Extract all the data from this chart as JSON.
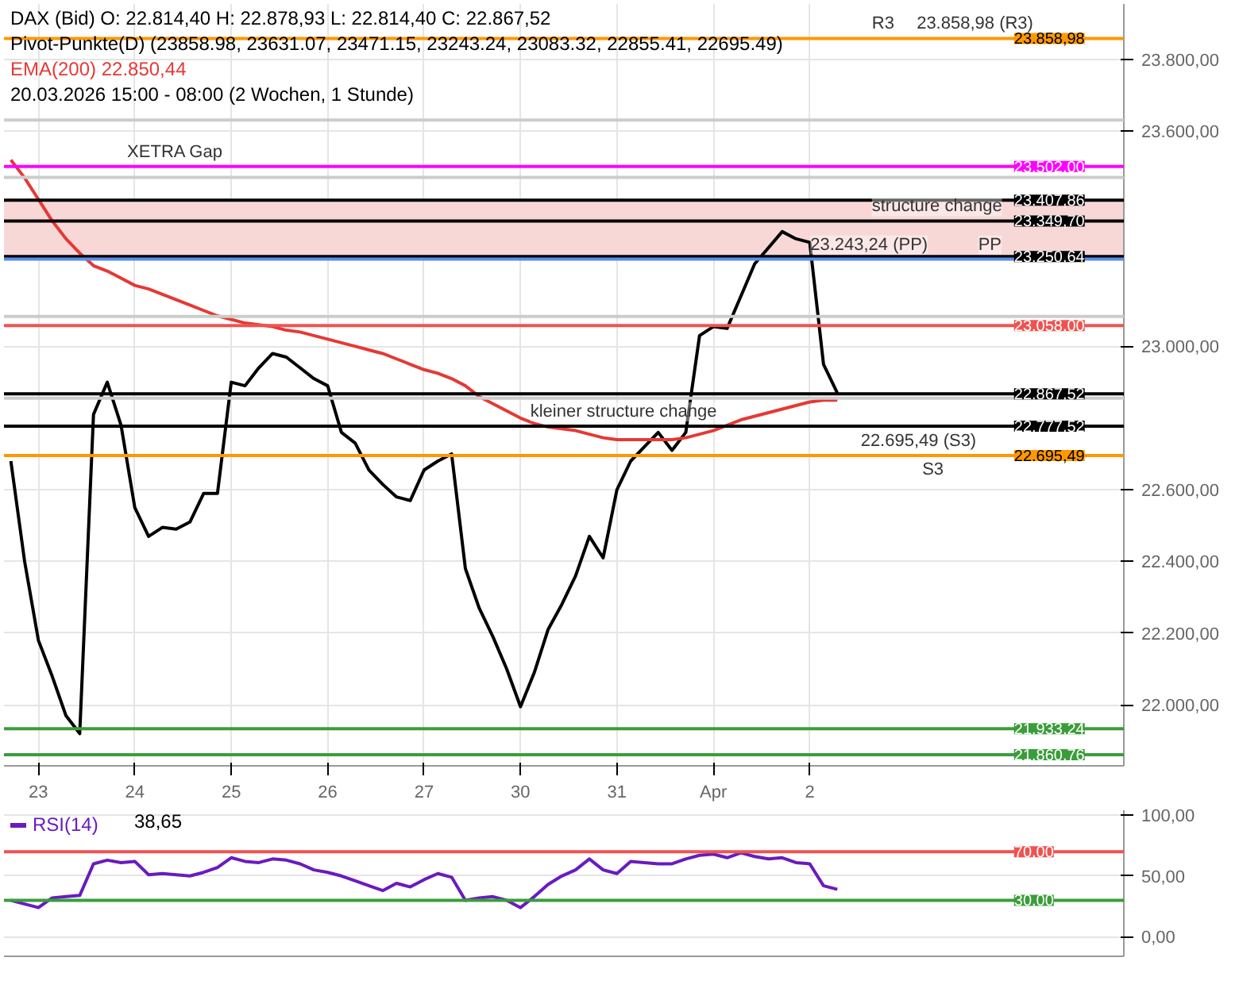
{
  "chart_data": [
    {
      "type": "line",
      "title": "DAX (Bid)  O: 22.814,40  H: 22.878,93  L: 22.814,40  C: 22.867,52",
      "subtitle": "Pivot-Punkte(D) (23858.98, 23631.07, 23471.15, 23243.24, 23083.32, 22855.41, 22695.49)",
      "categories": [
        null,
        null,
        "23",
        null,
        null,
        null,
        null,
        null,
        null,
        "24",
        null,
        null,
        null,
        null,
        null,
        null,
        "25",
        null,
        null,
        null,
        null,
        null,
        null,
        "26",
        null,
        null,
        null,
        null,
        null,
        null,
        "27",
        null,
        null,
        null,
        null,
        null,
        null,
        "30",
        null,
        null,
        null,
        null,
        null,
        null,
        "31",
        null,
        null,
        null,
        null,
        null,
        null,
        "Apr",
        null,
        null,
        null,
        null,
        null,
        null,
        "2",
        null,
        null,
        null,
        null,
        null,
        null,
        null,
        null,
        null,
        null,
        null,
        null,
        null,
        null
      ],
      "series": [
        {
          "color": "#000000",
          "values": [
            22680,
            22400,
            22180,
            22080,
            21970,
            21920,
            22810,
            22900,
            22780,
            22550,
            22470,
            22495,
            22490,
            22510,
            22590,
            22590,
            22900,
            22890,
            22940,
            22980,
            22970,
            22940,
            22910,
            22890,
            22760,
            22730,
            22655,
            22615,
            22580,
            22570,
            22655,
            22680,
            22700,
            22380,
            22270,
            22190,
            22100,
            21995,
            22090,
            22210,
            22280,
            22360,
            22470,
            22410,
            22600,
            22680,
            22720,
            22760,
            22710,
            22760,
            23030,
            23055,
            23050,
            23140,
            23230,
            23275,
            23320,
            23300,
            23290,
            22950,
            22870,
            null,
            null,
            null,
            null,
            null,
            null,
            null,
            null,
            null,
            null,
            null,
            null
          ]
        },
        {
          "name": "EMA(200) 22.850,44",
          "color": "#e53935",
          "values": [
            23520,
            23470,
            23410,
            23350,
            23300,
            23260,
            23225,
            23210,
            23190,
            23170,
            23160,
            23145,
            23130,
            23115,
            23100,
            23085,
            23075,
            23065,
            23060,
            23055,
            23045,
            23040,
            23030,
            23020,
            23010,
            23000,
            22990,
            22980,
            22965,
            22950,
            22935,
            22925,
            22910,
            22890,
            22860,
            22840,
            22820,
            22800,
            22785,
            22775,
            22770,
            22765,
            22755,
            22745,
            22740,
            22740,
            22740,
            22740,
            22740,
            22745,
            22755,
            22765,
            22780,
            22795,
            22805,
            22815,
            22825,
            22835,
            22845,
            22850,
            22850,
            null,
            null,
            null,
            null,
            null,
            null,
            null,
            null,
            null,
            null,
            null,
            null
          ]
        }
      ],
      "annotations": [
        "20.03.2026 15:00 - 08:00 (2 Wochen, 1 Stunde)",
        {
          "text": "XETRA Gap",
          "y": 23502
        },
        {
          "text": "R3",
          "y": 23858.98
        },
        {
          "text": "23.858,98 (R3)",
          "y": 23858.98
        },
        {
          "text": "structure change",
          "y": 23349.7
        },
        {
          "text": "23.243,24 (PP)",
          "y": 23243.24
        },
        {
          "text": "PP",
          "y": 23243.24
        },
        {
          "text": "kleiner structure change",
          "y": 22777.52
        },
        {
          "text": "22.695,49 (S3)",
          "y": 22695.49
        },
        {
          "text": "S3",
          "y": 22695.49
        }
      ],
      "ref_lines": [
        {
          "axis": "y",
          "value": 23858.98,
          "label": "23.858,98",
          "color": "#ff9800"
        },
        {
          "axis": "y",
          "value": 23631.07,
          "color": "#cccccc"
        },
        {
          "axis": "y",
          "value": 23502,
          "label": "23.502,00",
          "color": "#ff00ff"
        },
        {
          "axis": "y",
          "value": 23471.15,
          "color": "#cccccc"
        },
        {
          "axis": "y",
          "value": 23407.86,
          "label": "23.407,86",
          "color": "#000000"
        },
        {
          "axis": "y",
          "value": 23349.7,
          "label": "23.349,70",
          "color": "#000000"
        },
        {
          "axis": "y",
          "value": 23250.64,
          "label": "23.250,64",
          "color": "#000000"
        },
        {
          "axis": "y",
          "value": 23243.24,
          "color": "#5b8def"
        },
        {
          "axis": "y",
          "value": 23083.32,
          "color": "#cccccc"
        },
        {
          "axis": "y",
          "value": 23058,
          "label": "23.058,00",
          "color": "#ef5350"
        },
        {
          "axis": "y",
          "value": 22867.52,
          "label": "22.867,52",
          "color": "#000000"
        },
        {
          "axis": "y",
          "value": 22855.41,
          "color": "#cccccc"
        },
        {
          "axis": "y",
          "value": 22777.52,
          "label": "22.777,52",
          "color": "#000000"
        },
        {
          "axis": "y",
          "value": 22695.49,
          "label": "22.695,49",
          "color": "#ff9800"
        },
        {
          "axis": "y",
          "value": 21933.24,
          "label": "21.933,24",
          "color": "#3a9d3a"
        },
        {
          "axis": "y",
          "value": 21860.76,
          "label": "21.860,76",
          "color": "#3a9d3a"
        }
      ],
      "bands": [
        {
          "axis": "y",
          "from": 23250.64,
          "to": 23407.86,
          "color": "#f8d7d7"
        }
      ],
      "ylim": [
        21830,
        23955
      ],
      "yticks": [
        {
          "value": 22000,
          "label": "22.000,00"
        },
        {
          "value": 22200,
          "label": "22.200,00"
        },
        {
          "value": 22400,
          "label": "22.400,00"
        },
        {
          "value": 22600,
          "label": "22.600,00"
        },
        {
          "value": 23000,
          "label": "23.000,00"
        },
        {
          "value": 23600,
          "label": "23.600,00"
        },
        {
          "value": 23800,
          "label": "23.800,00"
        }
      ],
      "grid": true,
      "line_style": "solid"
    },
    {
      "type": "line",
      "categories": [
        null,
        null,
        null,
        null,
        null,
        null,
        null,
        null,
        null,
        null,
        null,
        null,
        null,
        null,
        null,
        null,
        null,
        null,
        null,
        null,
        null,
        null,
        null,
        null,
        null,
        null,
        null,
        null,
        null,
        null,
        null,
        null,
        null,
        null,
        null,
        null,
        null,
        null,
        null,
        null,
        null,
        null,
        null,
        null,
        null,
        null,
        null,
        null,
        null,
        null,
        null,
        null,
        null,
        null,
        null,
        null,
        null,
        null,
        null,
        null,
        null,
        null,
        null,
        null,
        null,
        null,
        null,
        null,
        null,
        null,
        null,
        null,
        null
      ],
      "series": [
        {
          "name": "RSI(14)",
          "color": "#6a1bbf",
          "values": [
            30,
            27,
            24,
            32,
            33,
            34,
            60,
            63,
            61,
            62,
            51,
            52,
            51,
            50,
            53,
            57,
            65,
            62,
            61,
            64,
            63,
            60,
            55,
            53,
            50,
            46,
            42,
            38,
            44,
            41,
            47,
            52,
            49,
            30,
            32,
            33,
            30,
            24,
            33,
            43,
            50,
            55,
            64,
            55,
            52,
            62,
            61,
            60,
            60,
            64,
            67,
            68,
            65,
            69,
            66,
            64,
            65,
            61,
            60,
            42,
            39,
            null,
            null,
            null,
            null,
            null,
            null,
            null,
            null,
            null,
            null,
            null,
            null
          ]
        }
      ],
      "annotations": [
        "38,65"
      ],
      "ref_lines": [
        {
          "axis": "y",
          "value": 70,
          "label": "70,00",
          "color": "#ef5350"
        },
        {
          "axis": "y",
          "value": 30,
          "label": "30,00",
          "color": "#3a9d3a"
        }
      ],
      "ylim": [
        -16,
        104
      ],
      "yticks": [
        {
          "value": 0,
          "label": "0,00"
        },
        {
          "value": 50,
          "label": "50,00"
        },
        {
          "value": 100,
          "label": "100,00"
        }
      ],
      "grid": true,
      "line_style": "solid"
    }
  ]
}
